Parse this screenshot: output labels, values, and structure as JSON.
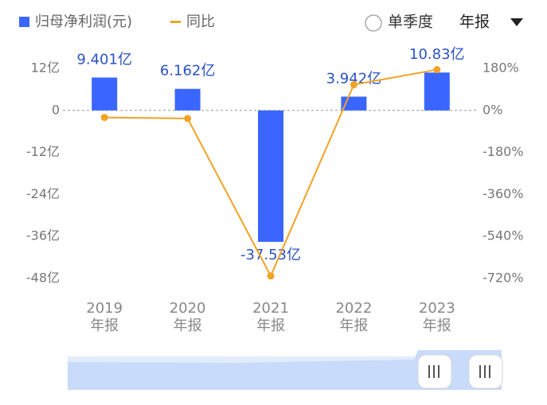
{
  "chart_data": {
    "type": "bar_line",
    "controls": {
      "period": "单季度",
      "report": "年报"
    },
    "categories": [
      "2019\n年报",
      "2020\n年报",
      "2021\n年报",
      "2022\n年报",
      "2023\n年报"
    ],
    "series": [
      {
        "name": "归母净利润(元)",
        "color": "#3a66ff",
        "type": "bar",
        "values": [
          9.401,
          6.162,
          -37.53,
          3.942,
          10.83
        ],
        "value_labels": [
          "9.401亿",
          "6.162亿",
          "-37.53亿",
          "3.942亿",
          "10.83亿"
        ]
      },
      {
        "name": "同比",
        "color": "#f2a324",
        "type": "line",
        "axis": "y2",
        "values": [
          -30,
          -34.5,
          -709,
          110.5,
          174.7
        ]
      }
    ],
    "ylim": [
      -48,
      12
    ],
    "yticks": [
      {
        "value": 12,
        "label": "12亿"
      },
      0,
      {
        "value": -12,
        "label": "-12亿"
      },
      {
        "value": -24,
        "label": "-24亿"
      },
      {
        "value": -36,
        "label": "-36亿"
      },
      {
        "value": -48,
        "label": "-48亿"
      }
    ],
    "y2lim": [
      -720,
      180
    ],
    "y2ticks": [
      {
        "value": 180,
        "label": "180%"
      },
      {
        "value": 0,
        "label": "0%"
      },
      {
        "value": -180,
        "label": "-180%"
      },
      {
        "value": -360,
        "label": "-360%"
      },
      {
        "value": -540,
        "label": "-540%"
      },
      {
        "value": -720,
        "label": "-720%"
      }
    ]
  }
}
